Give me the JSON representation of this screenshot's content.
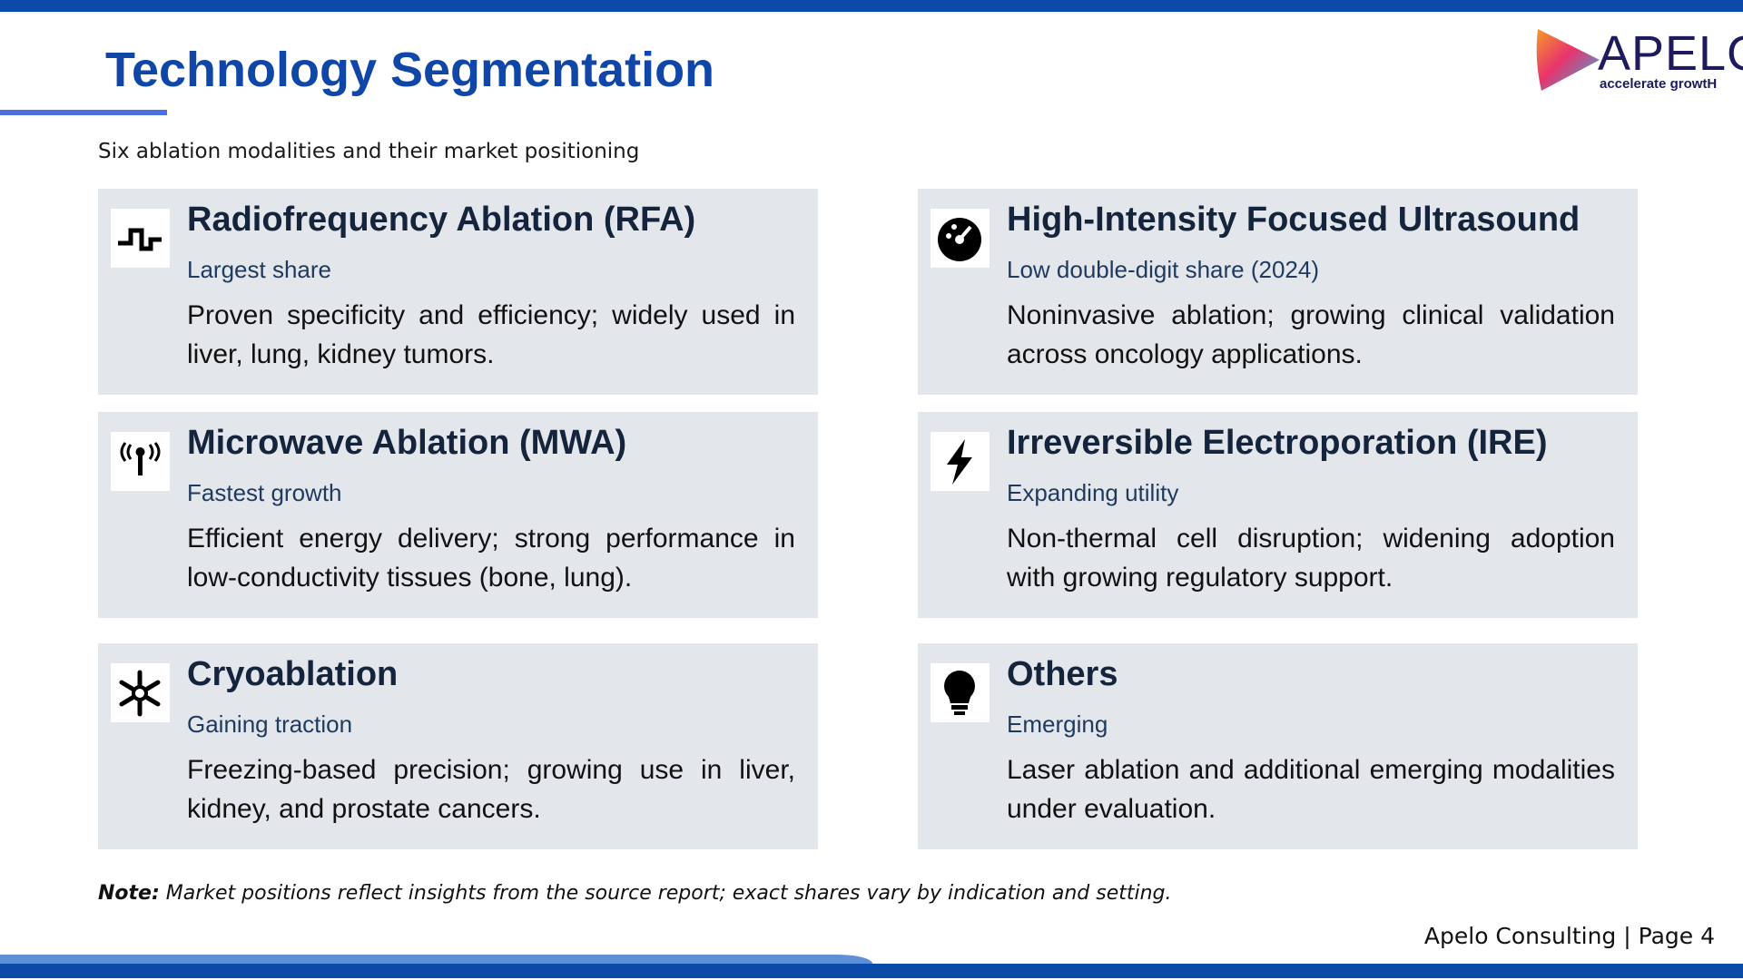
{
  "header": {
    "title": "Technology Segmentation",
    "subtitle": "Six ablation modalities and their market positioning",
    "logo": {
      "name": "APELO",
      "tagline": "accelerate growtH"
    }
  },
  "cards": [
    {
      "title": "Radiofrequency Ablation (RFA)",
      "tag": "Largest share",
      "description": "Proven specificity and efficiency; widely used in liver, lung, kidney tumors."
    },
    {
      "title": "High-Intensity Focused Ultrasound",
      "tag": "Low double-digit share (2024)",
      "description": "Noninvasive ablation; growing clinical validation across oncology applications."
    },
    {
      "title": "Microwave Ablation (MWA)",
      "tag": "Fastest growth",
      "description": "Efficient energy delivery; strong performance in low-conductivity tissues (bone, lung)."
    },
    {
      "title": "Irreversible Electroporation (IRE)",
      "tag": "Expanding utility",
      "description": "Non-thermal cell disruption; widening adoption with growing regulatory support."
    },
    {
      "title": "Cryoablation",
      "tag": "Gaining traction",
      "description": "Freezing-based precision; growing use in liver, kidney, and prostate cancers."
    },
    {
      "title": "Others",
      "tag": "Emerging",
      "description": "Laser ablation and additional emerging modalities under evaluation."
    }
  ],
  "note": {
    "label": "Note:",
    "text": "Market positions reflect insights from the source report; exact shares vary by indication and setting."
  },
  "footer": "Apelo Consulting | Page 4"
}
